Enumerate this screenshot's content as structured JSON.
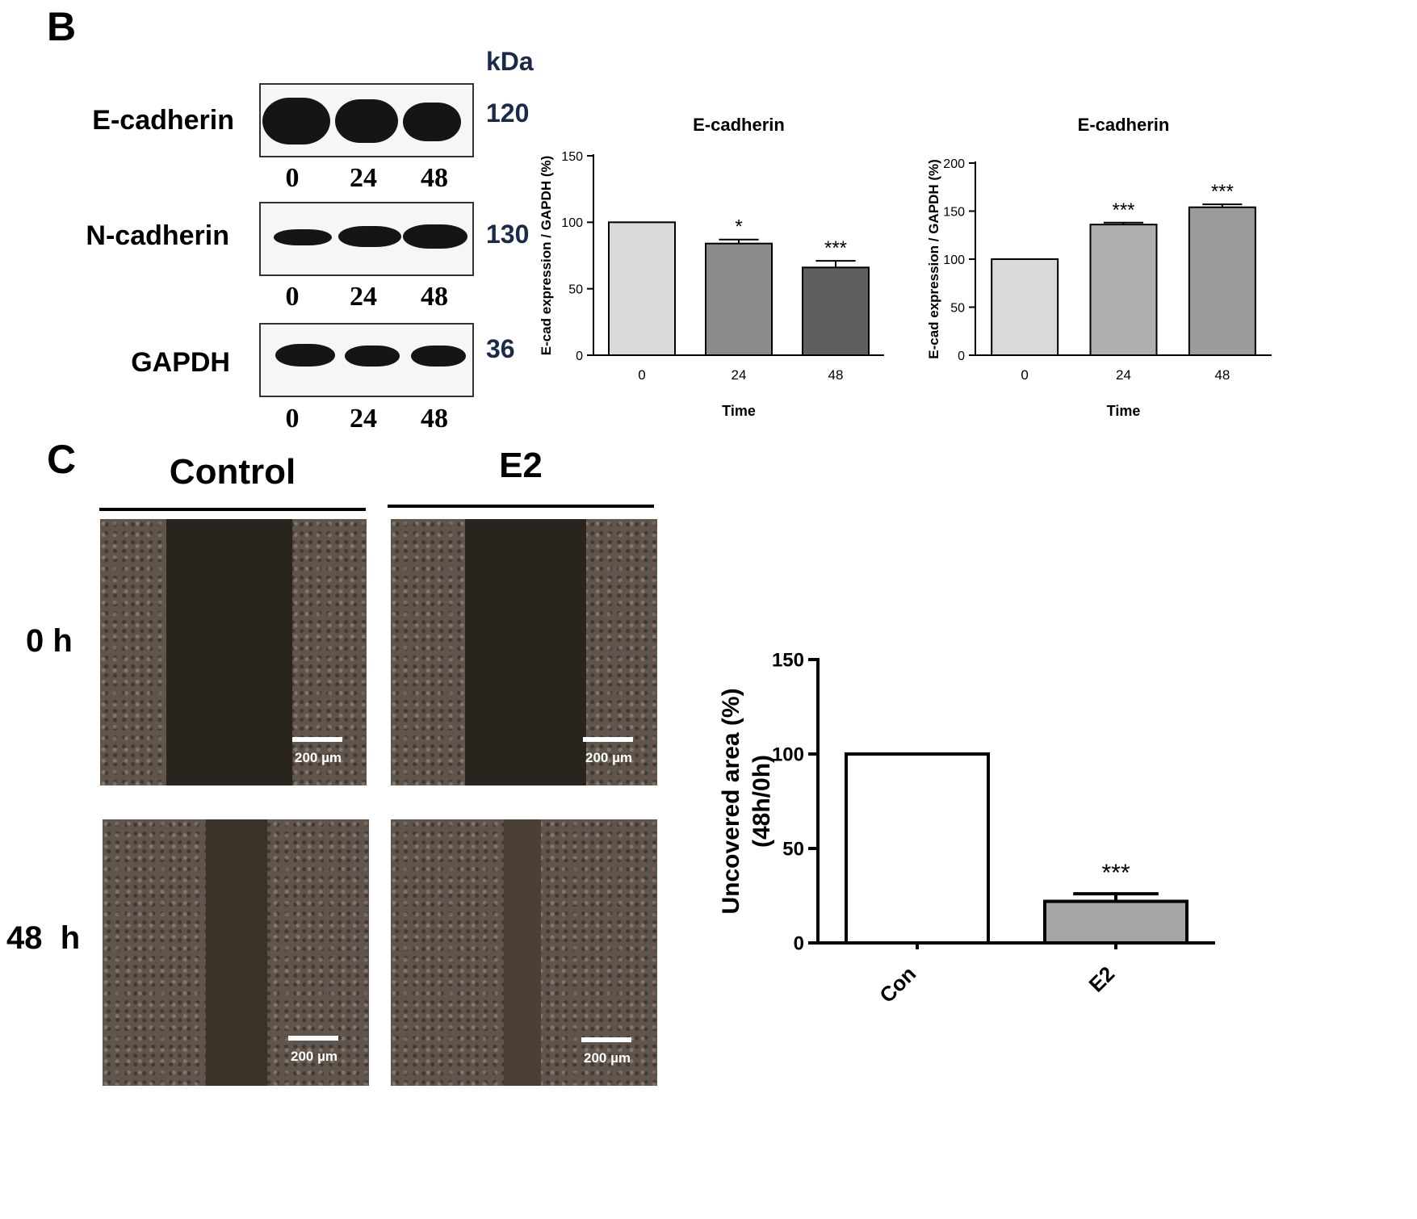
{
  "panels": {
    "b_label": "B",
    "c_label": "C"
  },
  "blots": {
    "unit": "kDa",
    "rows": [
      {
        "protein": "E-cadherin",
        "kda": "120",
        "lanes": [
          "0",
          "24",
          "48"
        ]
      },
      {
        "protein": "N-cadherin",
        "kda": "130",
        "lanes": [
          "0",
          "24",
          "48"
        ]
      },
      {
        "protein": "GAPDH",
        "kda": "36",
        "lanes": [
          "0",
          "24",
          "48"
        ]
      }
    ]
  },
  "scratch": {
    "conditions": [
      "Control",
      "E2"
    ],
    "timepoints": [
      "0 h",
      "48  h"
    ],
    "scale_label": "200 µm"
  },
  "chart_data": [
    {
      "type": "bar",
      "title": "E-cadherin",
      "xlabel": "Time",
      "ylabel": "E-cad expression / GAPDH (%)",
      "categories": [
        "0",
        "24",
        "48"
      ],
      "values": [
        100,
        84,
        66
      ],
      "errors": [
        0,
        3,
        5
      ],
      "significance": [
        "",
        "*",
        "***"
      ],
      "yticks": [
        0,
        50,
        100,
        150
      ],
      "ylim": [
        0,
        150
      ],
      "colors": [
        "#d9d9d9",
        "#8c8c8c",
        "#5f5f5f"
      ]
    },
    {
      "type": "bar",
      "title": "E-cadherin",
      "xlabel": "Time",
      "ylabel": "E-cad expression / GAPDH (%)",
      "categories": [
        "0",
        "24",
        "48"
      ],
      "values": [
        100,
        136,
        154
      ],
      "errors": [
        0,
        2,
        3
      ],
      "significance": [
        "",
        "***",
        "***"
      ],
      "yticks": [
        0,
        50,
        100,
        150,
        200
      ],
      "ylim": [
        0,
        200
      ],
      "colors": [
        "#d9d9d9",
        "#b0b0b0",
        "#9c9c9c"
      ]
    },
    {
      "type": "bar",
      "title": "",
      "xlabel": "",
      "ylabel": "Uncovered area (%)",
      "ylabel2": "(48h/0h)",
      "categories": [
        "Con",
        "E2"
      ],
      "values": [
        100,
        22
      ],
      "errors": [
        0,
        4
      ],
      "significance": [
        "",
        "***"
      ],
      "yticks": [
        0,
        50,
        100,
        150
      ],
      "ylim": [
        0,
        150
      ],
      "colors": [
        "#ffffff",
        "#a6a6a6"
      ]
    }
  ]
}
